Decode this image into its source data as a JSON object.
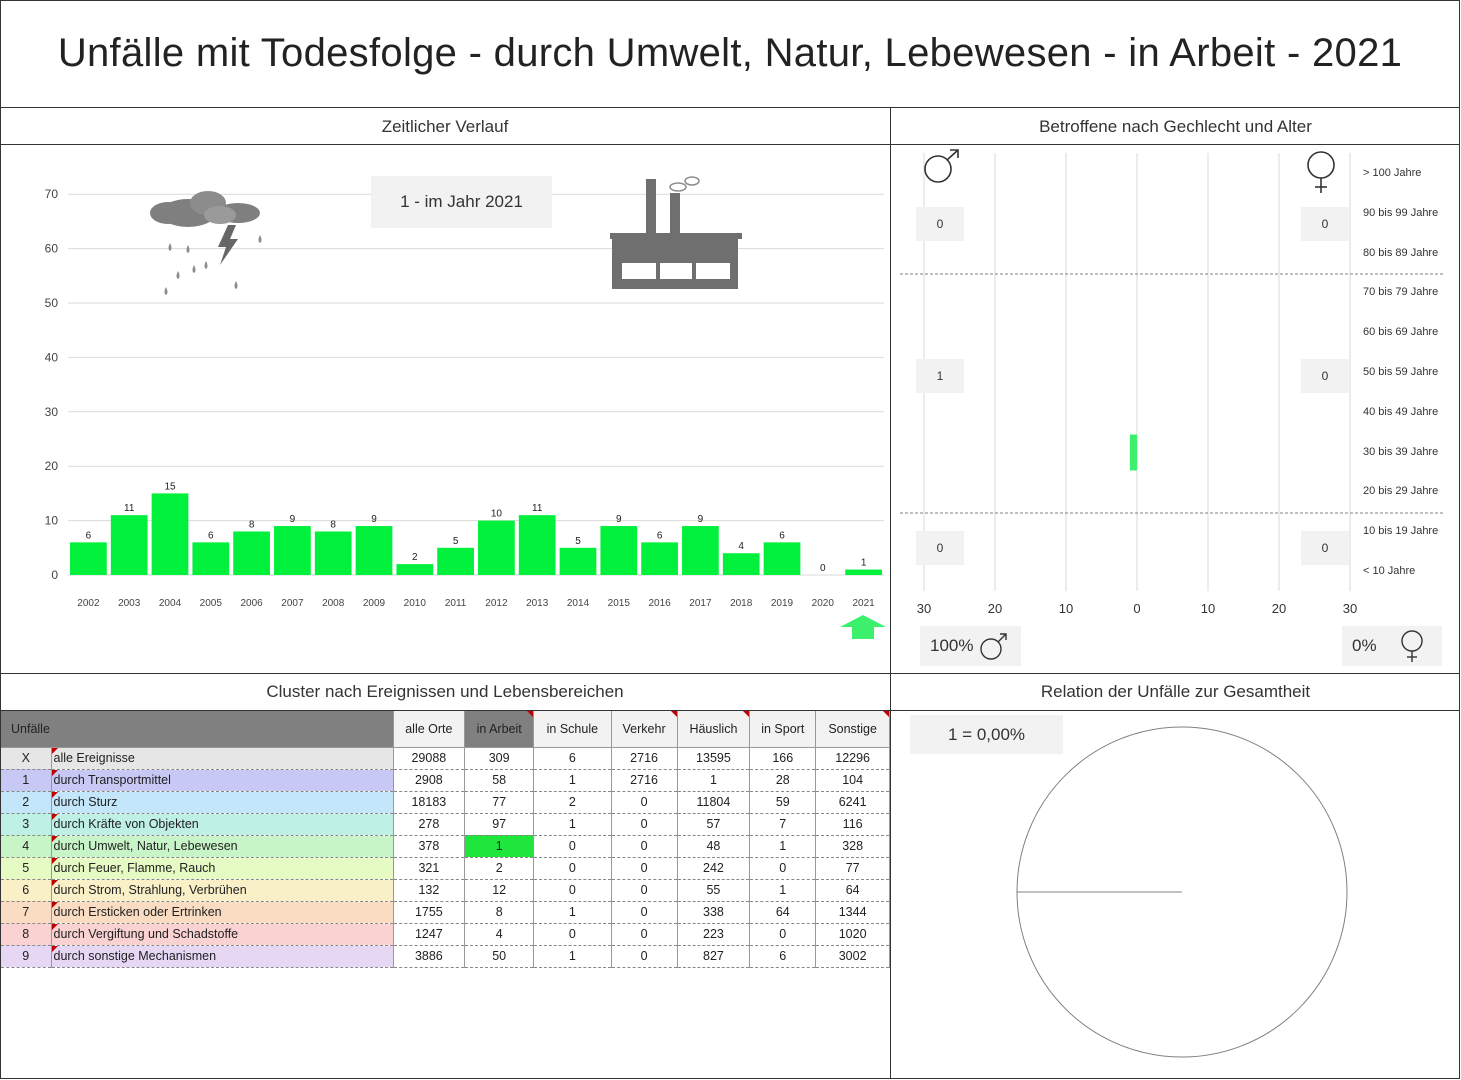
{
  "title": "Unfälle mit Todesfolge - durch Umwelt, Natur, Lebewesen - in Arbeit - 2021",
  "sections": {
    "time": "Zeitlicher Verlauf",
    "gender_age": "Betroffene nach Gechlecht und Alter",
    "cluster": "Cluster nach Ereignissen und Lebensbereichen",
    "relation": "Relation der Unfälle zur Gesamtheit"
  },
  "time_info": "1 - im Jahr 2021",
  "icons": [
    "storm-cloud-icon",
    "factory-icon",
    "up-arrow-icon",
    "male-icon",
    "female-icon"
  ],
  "colors": {
    "bar": "#00f03c",
    "highlight": "#1ee63c",
    "arrow": "#3cf06e",
    "header_dark": "#808080",
    "marker": "#c00000"
  },
  "chart_data": [
    {
      "type": "bar",
      "categories": [
        "2002",
        "2003",
        "2004",
        "2005",
        "2006",
        "2007",
        "2008",
        "2009",
        "2010",
        "2011",
        "2012",
        "2013",
        "2014",
        "2015",
        "2016",
        "2017",
        "2018",
        "2019",
        "2020",
        "2021"
      ],
      "values": [
        6,
        11,
        15,
        6,
        8,
        9,
        8,
        9,
        2,
        5,
        10,
        11,
        5,
        9,
        6,
        9,
        4,
        6,
        0,
        1
      ],
      "yticks": [
        "0",
        "10",
        "20",
        "30",
        "40",
        "50",
        "60",
        "70"
      ],
      "ylim": [
        0,
        70
      ],
      "grid": true,
      "title": "",
      "xlabel": "",
      "ylabel": ""
    },
    {
      "type": "bar",
      "orientation": "horizontal",
      "age_groups": [
        "> 100 Jahre",
        "90 bis 99 Jahre",
        "80 bis 89 Jahre",
        "70 bis 79 Jahre",
        "60 bis 69 Jahre",
        "50 bis 59 Jahre",
        "40 bis 49 Jahre",
        "30 bis 39 Jahre",
        "20 bis 29 Jahre",
        "10 bis 19 Jahre",
        "< 10 Jahre"
      ],
      "male": [
        0,
        0,
        0,
        0,
        0,
        0,
        0,
        1,
        0,
        0,
        0
      ],
      "female": [
        0,
        0,
        0,
        0,
        0,
        0,
        0,
        0,
        0,
        0,
        0
      ],
      "xticks": [
        "30",
        "20",
        "10",
        "0",
        "10",
        "20",
        "30"
      ],
      "xlim": [
        -30,
        30
      ],
      "group_totals": {
        "male": [
          "0",
          "1",
          "0"
        ],
        "female": [
          "0",
          "0",
          "0"
        ]
      },
      "share": {
        "male": "100%",
        "female": "0%"
      }
    },
    {
      "type": "pie",
      "label": "1 =  0,00%",
      "values": [
        1,
        29087
      ]
    }
  ],
  "table": {
    "corner_label": "Unfälle",
    "columns": [
      "alle Orte",
      "in Arbeit",
      "in Schule",
      "Verkehr",
      "Häuslich",
      "in Sport",
      "Sonstige"
    ],
    "rows": [
      {
        "idx": "X",
        "label": "alle Ereignisse",
        "color": "#e6e6e6",
        "values": [
          "29088",
          "309",
          "6",
          "2716",
          "13595",
          "166",
          "12296"
        ]
      },
      {
        "idx": "1",
        "label": "durch Transportmittel",
        "color": "#c8c8f5",
        "values": [
          "2908",
          "58",
          "1",
          "2716",
          "1",
          "28",
          "104"
        ]
      },
      {
        "idx": "2",
        "label": "durch Sturz",
        "color": "#c3e6fa",
        "values": [
          "18183",
          "77",
          "2",
          "0",
          "11804",
          "59",
          "6241"
        ]
      },
      {
        "idx": "3",
        "label": "durch Kräfte von Objekten",
        "color": "#bef0e6",
        "values": [
          "278",
          "97",
          "1",
          "0",
          "57",
          "7",
          "116"
        ]
      },
      {
        "idx": "4",
        "label": "durch Umwelt, Natur, Lebewesen",
        "color": "#c8f5c8",
        "values": [
          "378",
          "1",
          "0",
          "0",
          "48",
          "1",
          "328"
        ]
      },
      {
        "idx": "5",
        "label": "durch Feuer, Flamme, Rauch",
        "color": "#e6fac3",
        "values": [
          "321",
          "2",
          "0",
          "0",
          "242",
          "0",
          "77"
        ]
      },
      {
        "idx": "6",
        "label": "durch Strom, Strahlung, Verbrühen",
        "color": "#faf0c8",
        "values": [
          "132",
          "12",
          "0",
          "0",
          "55",
          "1",
          "64"
        ]
      },
      {
        "idx": "7",
        "label": "durch Ersticken oder Ertrinken",
        "color": "#fadcc3",
        "values": [
          "1755",
          "8",
          "1",
          "0",
          "338",
          "64",
          "1344"
        ]
      },
      {
        "idx": "8",
        "label": "durch Vergiftung und Schadstoffe",
        "color": "#fad2d2",
        "values": [
          "1247",
          "4",
          "0",
          "0",
          "223",
          "0",
          "1020"
        ]
      },
      {
        "idx": "9",
        "label": "durch sonstige Mechanismen",
        "color": "#e6d7f5",
        "values": [
          "3886",
          "50",
          "1",
          "0",
          "827",
          "6",
          "3002"
        ]
      }
    ]
  }
}
